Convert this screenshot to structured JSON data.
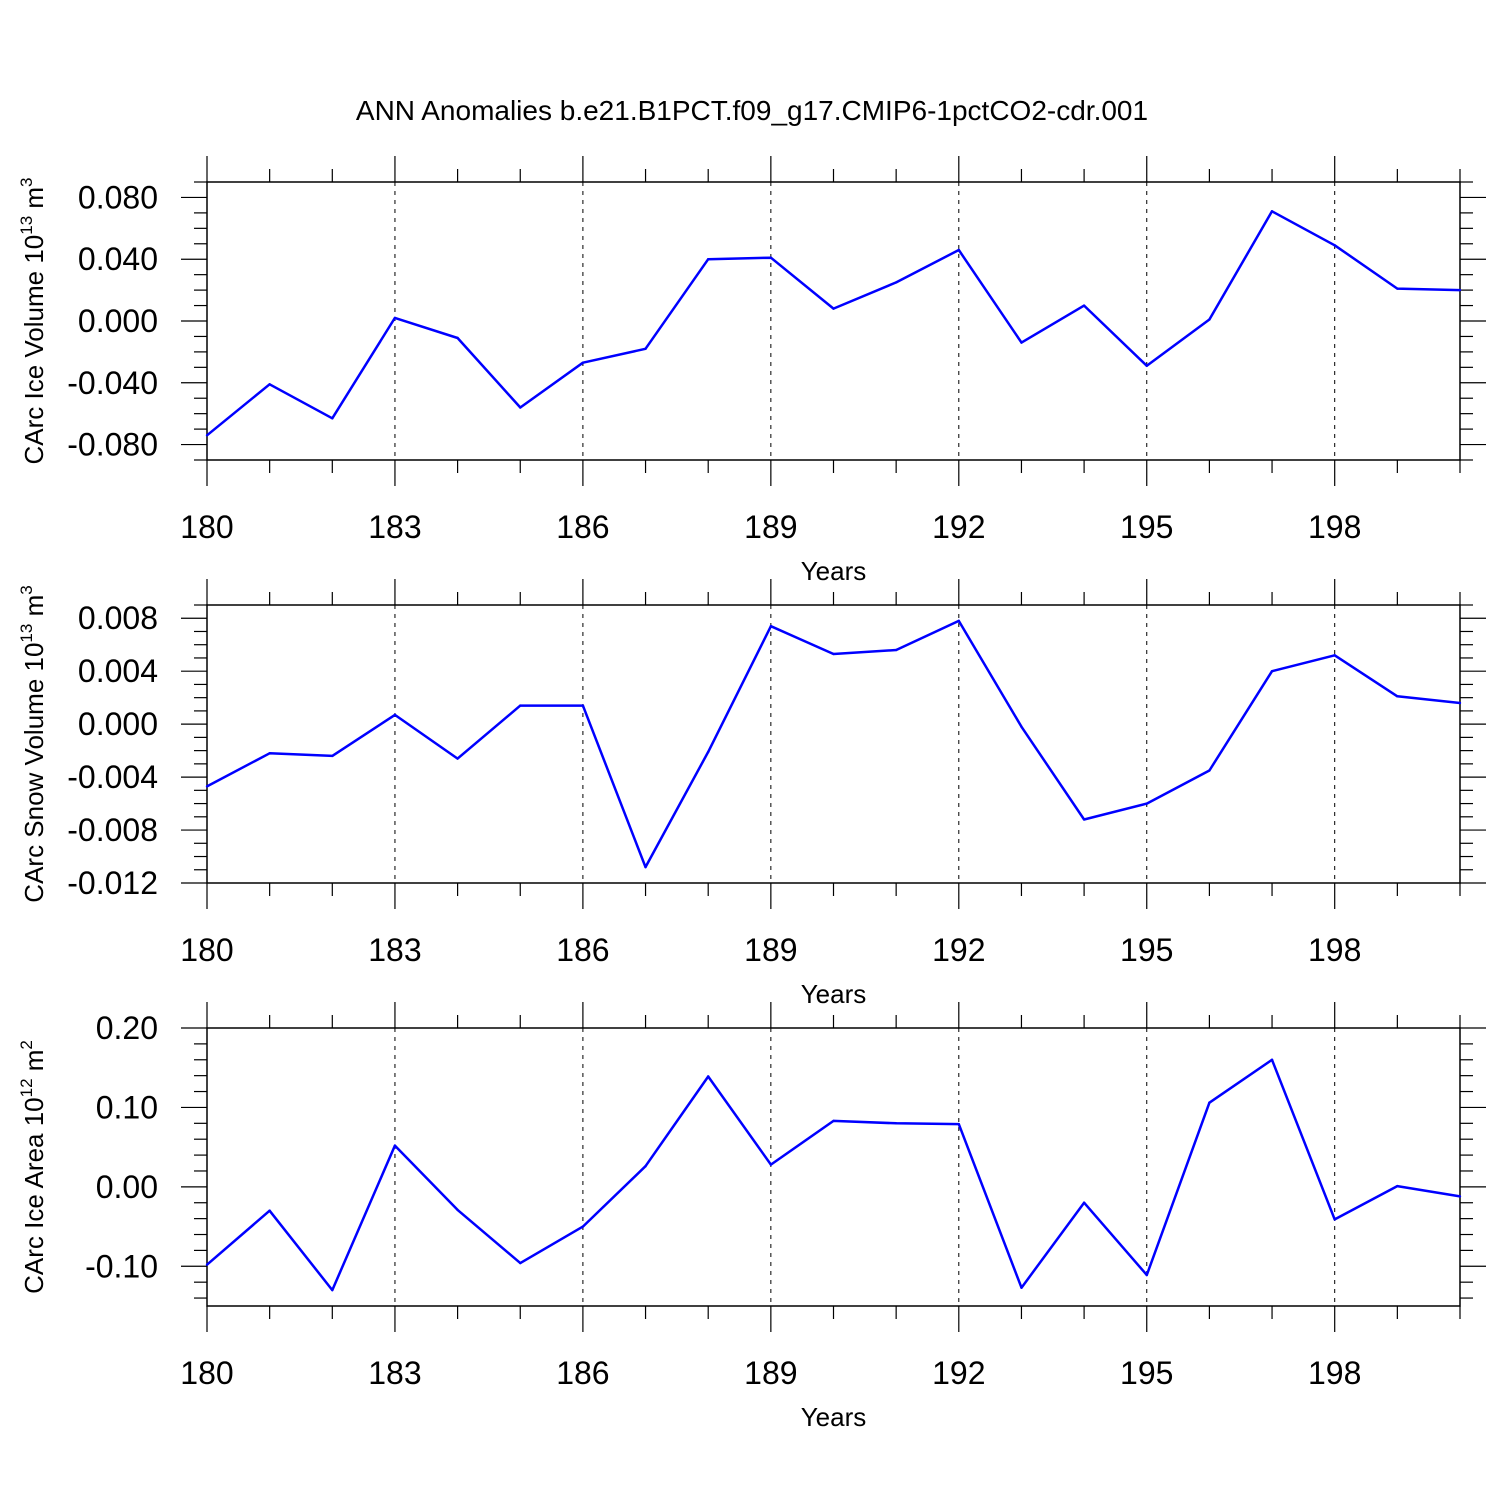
{
  "title": "ANN Anomalies b.e21.B1PCT.f09_g17.CMIP6-1pctCO2-cdr.001",
  "chart_data": [
    {
      "type": "line",
      "xlabel": "Years",
      "ylabel_main": "CArc Ice Volume 10",
      "ylabel_exp": "13",
      "ylabel_unit": " m",
      "ylabel_unit_exp": "3",
      "x": [
        180,
        181,
        182,
        183,
        184,
        185,
        186,
        187,
        188,
        189,
        190,
        191,
        192,
        193,
        194,
        195,
        196,
        197,
        198,
        199,
        200
      ],
      "xlim": [
        180,
        200
      ],
      "xticks": [
        180,
        183,
        186,
        189,
        192,
        195,
        198
      ],
      "xtick_labels": [
        "180",
        "183",
        "186",
        "189",
        "192",
        "195",
        "198"
      ],
      "ylim": [
        -0.09,
        0.09
      ],
      "yticks": [
        -0.08,
        -0.04,
        0.0,
        0.04,
        0.08
      ],
      "ytick_labels": [
        "-0.080",
        "-0.040",
        "0.000",
        "0.040",
        "0.080"
      ],
      "y_minor_step": 0.01,
      "grid": "vertical dashed at major x ticks",
      "series": [
        {
          "color": "#0000ff",
          "values": [
            -0.074,
            -0.041,
            -0.063,
            0.002,
            -0.011,
            -0.056,
            -0.027,
            -0.018,
            0.04,
            0.041,
            0.008,
            0.025,
            0.046,
            -0.014,
            0.01,
            -0.029,
            0.001,
            0.071,
            0.049,
            0.021,
            0.02
          ]
        }
      ]
    },
    {
      "type": "line",
      "xlabel": "Years",
      "ylabel_main": "CArc Snow Volume 10",
      "ylabel_exp": "13",
      "ylabel_unit": " m",
      "ylabel_unit_exp": "3",
      "x": [
        180,
        181,
        182,
        183,
        184,
        185,
        186,
        187,
        188,
        189,
        190,
        191,
        192,
        193,
        194,
        195,
        196,
        197,
        198,
        199,
        200
      ],
      "xlim": [
        180,
        200
      ],
      "xticks": [
        180,
        183,
        186,
        189,
        192,
        195,
        198
      ],
      "xtick_labels": [
        "180",
        "183",
        "186",
        "189",
        "192",
        "195",
        "198"
      ],
      "ylim": [
        -0.012,
        0.009
      ],
      "yticks": [
        -0.012,
        -0.008,
        -0.004,
        0.0,
        0.004,
        0.008
      ],
      "ytick_labels": [
        "-0.012",
        "-0.008",
        "-0.004",
        "0.000",
        "0.004",
        "0.008"
      ],
      "y_minor_step": 0.001,
      "grid": "vertical dashed at major x ticks",
      "series": [
        {
          "color": "#0000ff",
          "values": [
            -0.0047,
            -0.0022,
            -0.0024,
            0.0007,
            -0.0026,
            0.0014,
            0.0014,
            -0.0108,
            -0.0021,
            0.0074,
            0.0053,
            0.0056,
            0.0078,
            -0.0002,
            -0.0072,
            -0.006,
            -0.0035,
            0.004,
            0.0052,
            0.0021,
            0.0016
          ]
        }
      ]
    },
    {
      "type": "line",
      "xlabel": "Years",
      "ylabel_main": "CArc Ice Area 10",
      "ylabel_exp": "12",
      "ylabel_unit": " m",
      "ylabel_unit_exp": "2",
      "x": [
        180,
        181,
        182,
        183,
        184,
        185,
        186,
        187,
        188,
        189,
        190,
        191,
        192,
        193,
        194,
        195,
        196,
        197,
        198,
        199,
        200
      ],
      "xlim": [
        180,
        200
      ],
      "xticks": [
        180,
        183,
        186,
        189,
        192,
        195,
        198
      ],
      "xtick_labels": [
        "180",
        "183",
        "186",
        "189",
        "192",
        "195",
        "198"
      ],
      "ylim": [
        -0.15,
        0.2
      ],
      "yticks": [
        -0.1,
        0.0,
        0.1,
        0.2
      ],
      "ytick_labels": [
        "-0.10",
        "0.00",
        "0.10",
        "0.20"
      ],
      "y_minor_step": 0.02,
      "grid": "vertical dashed at major x ticks",
      "series": [
        {
          "color": "#0000ff",
          "values": [
            -0.098,
            -0.03,
            -0.13,
            0.052,
            -0.029,
            -0.096,
            -0.05,
            0.026,
            0.139,
            0.028,
            0.083,
            0.08,
            0.079,
            -0.127,
            -0.02,
            -0.111,
            0.106,
            0.16,
            -0.041,
            0.001,
            -0.012
          ]
        }
      ]
    }
  ]
}
